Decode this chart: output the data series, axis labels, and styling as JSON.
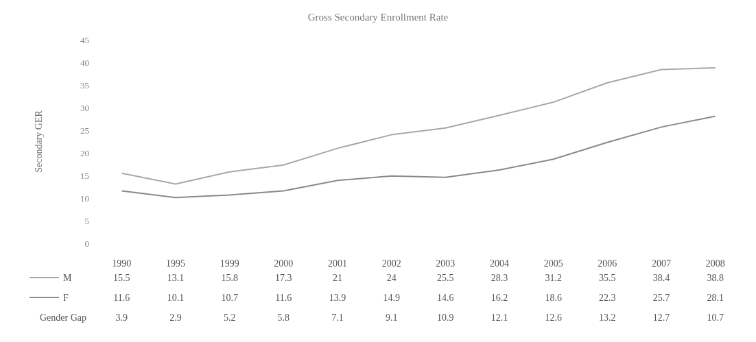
{
  "chart_data": {
    "type": "line",
    "title": "Gross Secondary Enrollment Rate",
    "ylabel": "Secondary GER",
    "categories": [
      "1990",
      "1995",
      "1999",
      "2000",
      "2001",
      "2002",
      "2003",
      "2004",
      "2005",
      "2006",
      "2007",
      "2008"
    ],
    "series": [
      {
        "name": "M",
        "color": "#a8a8a8",
        "values": [
          15.5,
          13.1,
          15.8,
          17.3,
          21,
          24,
          25.5,
          28.3,
          31.2,
          35.5,
          38.4,
          38.8
        ]
      },
      {
        "name": "F",
        "color": "#8a8a8a",
        "values": [
          11.6,
          10.1,
          10.7,
          11.6,
          13.9,
          14.9,
          14.6,
          16.2,
          18.6,
          22.3,
          25.7,
          28.1
        ]
      }
    ],
    "ylim": [
      0,
      45
    ],
    "yticks": [
      0,
      5,
      10,
      15,
      20,
      25,
      30,
      35,
      40,
      45
    ],
    "grid": false,
    "legend": "bottom left",
    "marker": "none",
    "data_labels": true,
    "annotations": [
      "Gender Gap",
      "3.9",
      "2.9",
      "5.2",
      "5.8",
      "7.1",
      "9.1",
      "10.9",
      "12.1",
      "12.6",
      "13.2",
      "12.7",
      "10.7"
    ]
  }
}
